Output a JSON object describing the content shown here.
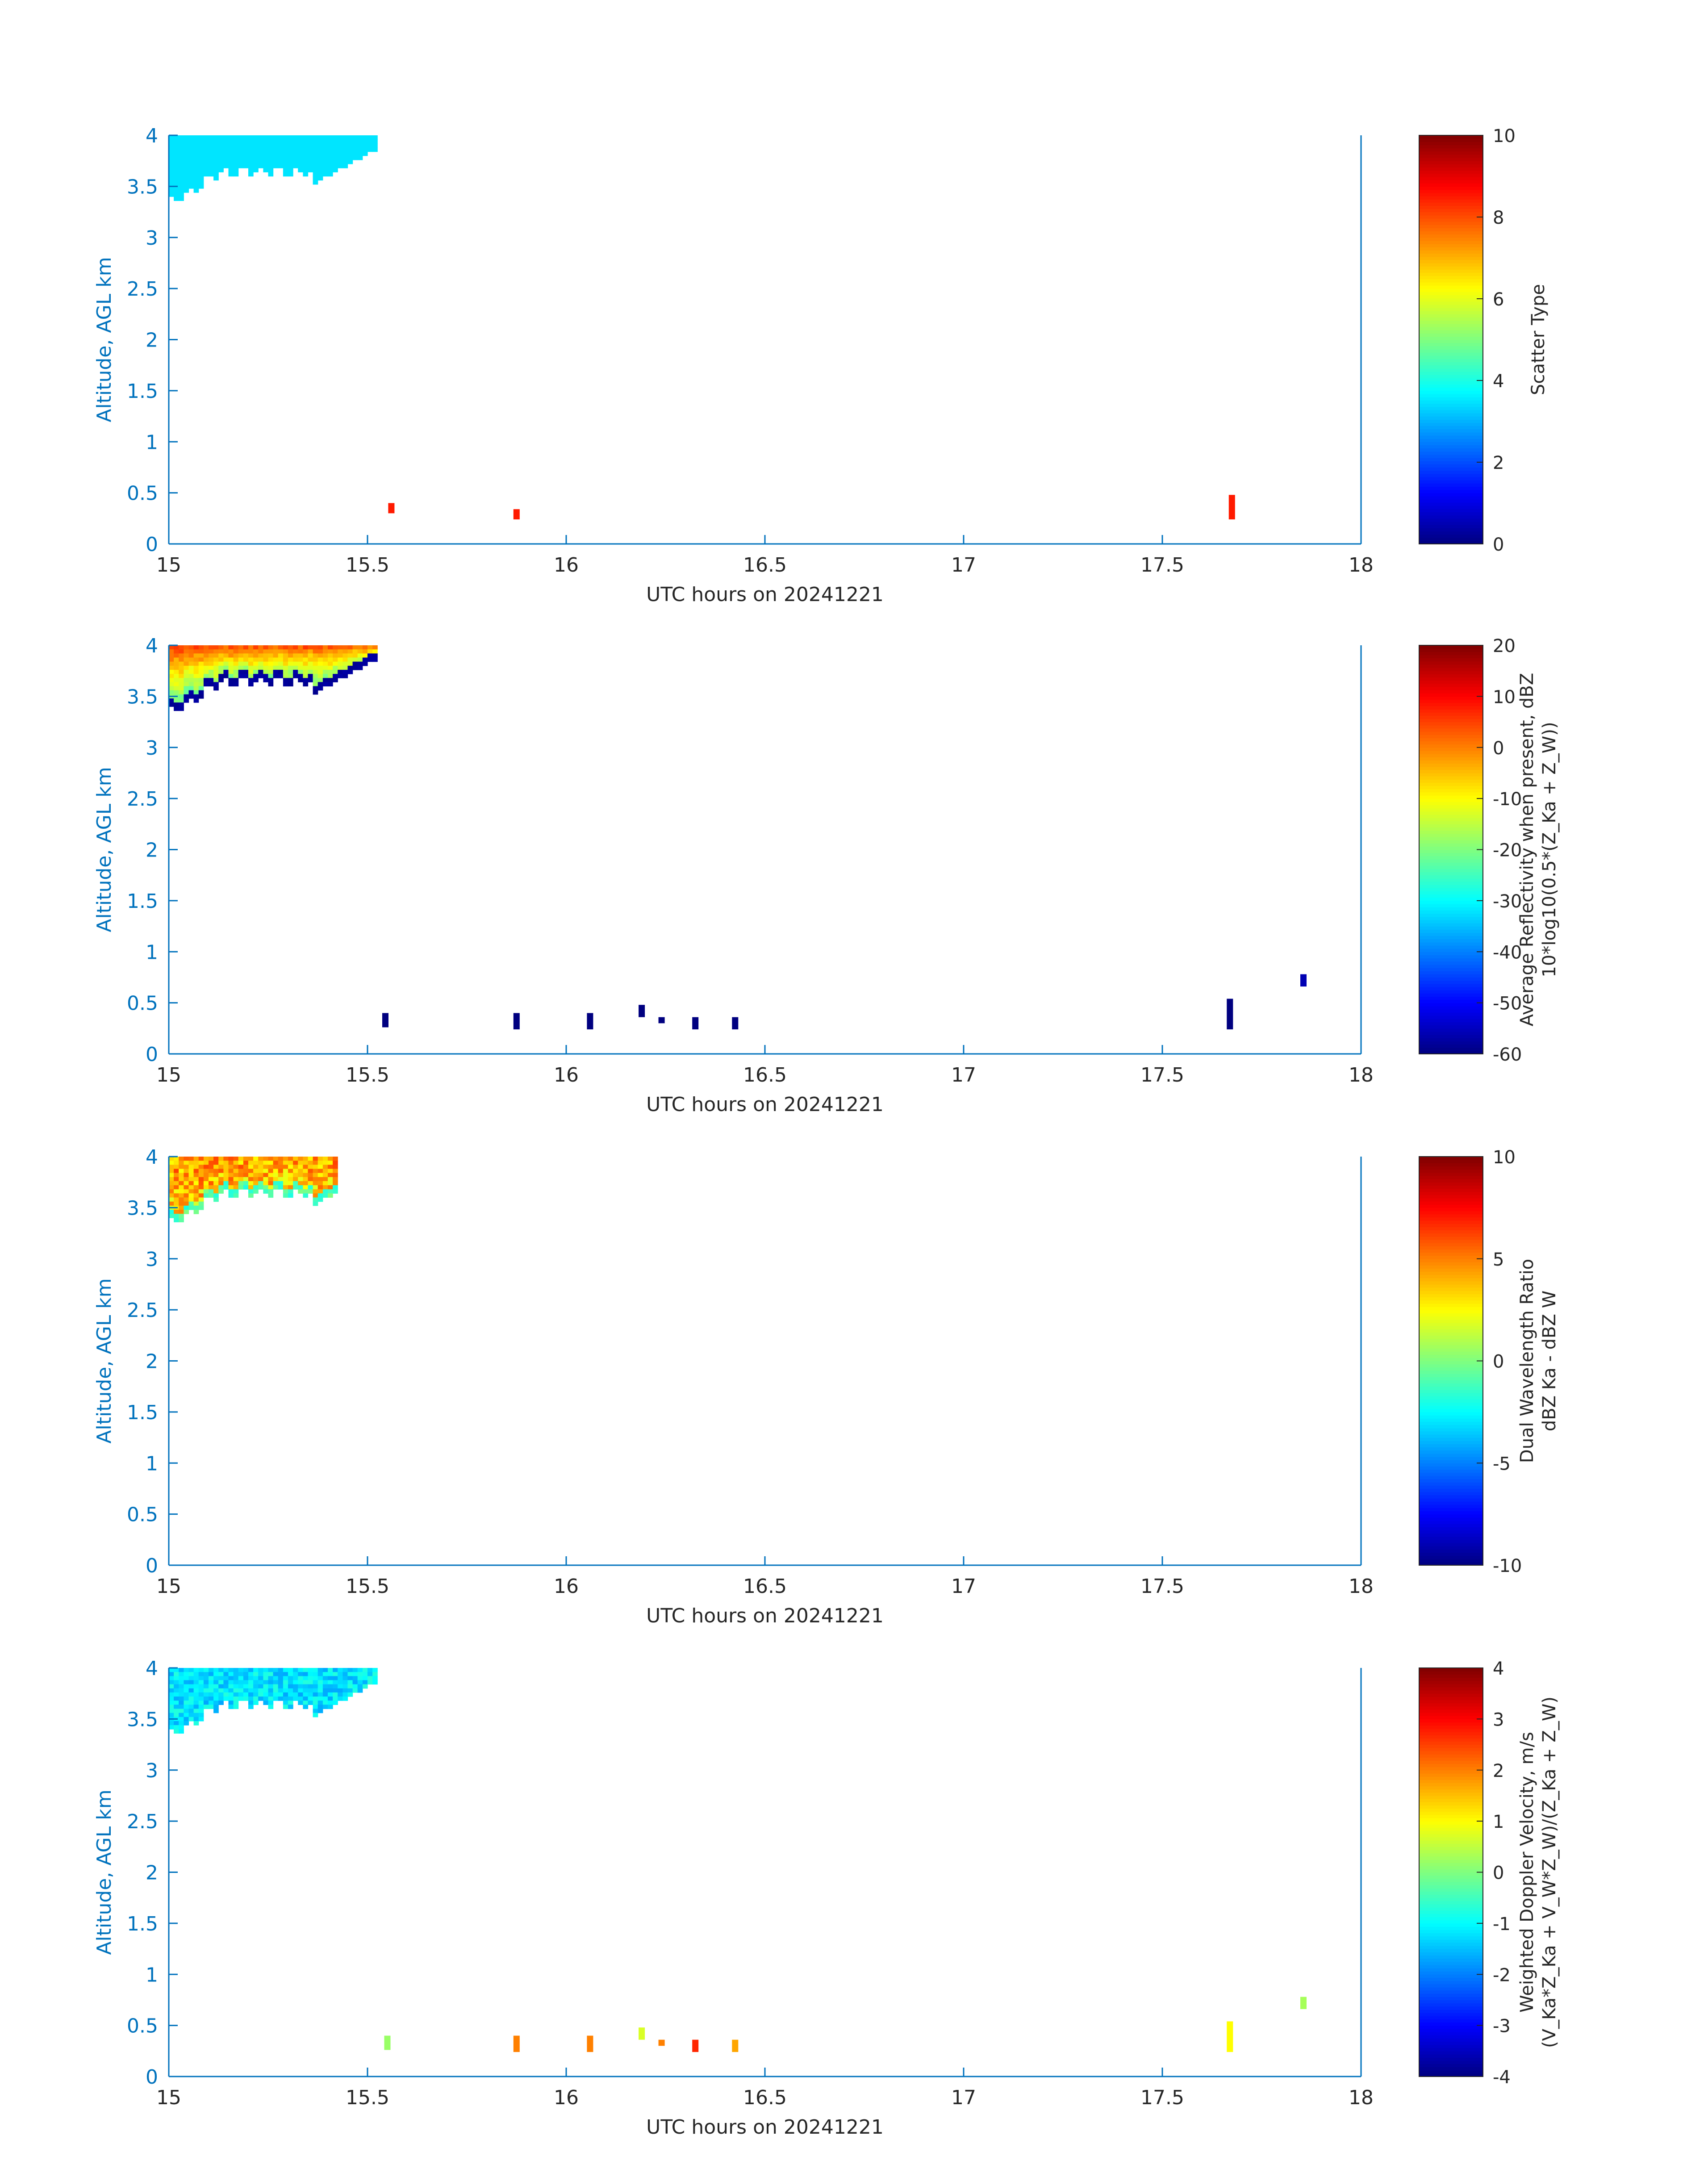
{
  "page": {
    "background": "#ffffff"
  },
  "style": {
    "axis_color": "#0072bd",
    "label_color": "#262626"
  },
  "chart_data": [
    {
      "type": "heatmap",
      "title": "",
      "xlabel": "UTC hours on 20241221",
      "ylabel": "Altitude, AGL km",
      "xlim": [
        15,
        18
      ],
      "ylim": [
        0,
        4
      ],
      "xticks": [
        "15",
        "15.5",
        "16",
        "16.5",
        "17",
        "17.5",
        "18"
      ],
      "yticks": [
        "0",
        "0.5",
        "1",
        "1.5",
        "2",
        "2.5",
        "3",
        "3.5",
        "4"
      ],
      "colormap": "jet",
      "colorbar": {
        "label_lines": [
          "Scatter Type"
        ],
        "ticks": [
          "0",
          "2",
          "4",
          "6",
          "8",
          "10"
        ],
        "clim": [
          0,
          10
        ]
      },
      "top_layer": {
        "t0": 15.0,
        "t1": 15.52,
        "value": 3.5,
        "variation": 0,
        "noise": 0
      },
      "features": [
        {
          "t": 15.56,
          "z0": 0.3,
          "z1": 0.4,
          "value": 8.5
        },
        {
          "t": 15.875,
          "z0": 0.24,
          "z1": 0.34,
          "value": 8.5
        },
        {
          "t": 17.675,
          "z0": 0.24,
          "z1": 0.48,
          "value": 8.5
        }
      ]
    },
    {
      "type": "heatmap",
      "title": "",
      "xlabel": "UTC hours on 20241221",
      "ylabel": "Altitude, AGL km",
      "xlim": [
        15,
        18
      ],
      "ylim": [
        0,
        4
      ],
      "xticks": [
        "15",
        "15.5",
        "16",
        "16.5",
        "17",
        "17.5",
        "18"
      ],
      "yticks": [
        "0",
        "0.5",
        "1",
        "1.5",
        "2",
        "2.5",
        "3",
        "3.5",
        "4"
      ],
      "colormap": "jet",
      "colorbar": {
        "label_lines": [
          "Average Reflectivity when present, dBZ",
          "10*log10(0.5*(Z_Ka + Z_W))"
        ],
        "ticks": [
          "-60",
          "-50",
          "-40",
          "-30",
          "-20",
          "-10",
          "0",
          "10",
          "20"
        ],
        "clim": [
          -60,
          20
        ]
      },
      "top_layer": {
        "t0": 15.0,
        "t1": 15.52,
        "value": -10,
        "variation": 40,
        "noise": 3,
        "base_value": -58,
        "base_rows": 2
      },
      "features": [
        {
          "t": 15.545,
          "z0": 0.26,
          "z1": 0.4,
          "value": -60
        },
        {
          "t": 15.875,
          "z0": 0.24,
          "z1": 0.4,
          "value": -60
        },
        {
          "t": 16.06,
          "z0": 0.24,
          "z1": 0.4,
          "value": -60
        },
        {
          "t": 16.19,
          "z0": 0.36,
          "z1": 0.48,
          "value": -60
        },
        {
          "t": 16.24,
          "z0": 0.3,
          "z1": 0.36,
          "value": -60
        },
        {
          "t": 16.325,
          "z0": 0.24,
          "z1": 0.36,
          "value": -60
        },
        {
          "t": 16.425,
          "z0": 0.24,
          "z1": 0.36,
          "value": -60
        },
        {
          "t": 17.67,
          "z0": 0.24,
          "z1": 0.54,
          "value": -60
        },
        {
          "t": 17.855,
          "z0": 0.66,
          "z1": 0.78,
          "value": -56
        }
      ]
    },
    {
      "type": "heatmap",
      "title": "",
      "xlabel": "UTC hours on 20241221",
      "ylabel": "Altitude, AGL km",
      "xlim": [
        15,
        18
      ],
      "ylim": [
        0,
        4
      ],
      "xticks": [
        "15",
        "15.5",
        "16",
        "16.5",
        "17",
        "17.5",
        "18"
      ],
      "yticks": [
        "0",
        "0.5",
        "1",
        "1.5",
        "2",
        "2.5",
        "3",
        "3.5",
        "4"
      ],
      "colormap": "jet",
      "colorbar": {
        "label_lines": [
          "Dual Wavelength Ratio",
          "dBZ Ka - dBZ W"
        ],
        "ticks": [
          "-10",
          "-5",
          "0",
          "5",
          "10"
        ],
        "clim": [
          -10,
          10
        ]
      },
      "top_layer": {
        "t0": 15.0,
        "t1": 15.42,
        "value": 4,
        "variation": 1.5,
        "noise": 2,
        "base_value": -1,
        "base_rows": 2
      },
      "features": []
    },
    {
      "type": "heatmap",
      "title": "",
      "xlabel": "UTC hours on 20241221",
      "ylabel": "Altitude, AGL km",
      "xlim": [
        15,
        18
      ],
      "ylim": [
        0,
        4
      ],
      "xticks": [
        "15",
        "15.5",
        "16",
        "16.5",
        "17",
        "17.5",
        "18"
      ],
      "yticks": [
        "0",
        "0.5",
        "1",
        "1.5",
        "2",
        "2.5",
        "3",
        "3.5",
        "4"
      ],
      "colormap": "jet",
      "colorbar": {
        "label_lines": [
          "Weighted Doppler Velocity, m/s",
          "(V_Ka*Z_Ka + V_W*Z_W)/(Z_Ka + Z_W)"
        ],
        "ticks": [
          "-4",
          "-3",
          "-2",
          "-1",
          "0",
          "1",
          "2",
          "3",
          "4"
        ],
        "clim": [
          -4,
          4
        ]
      },
      "top_layer": {
        "t0": 15.0,
        "t1": 15.52,
        "value": -1.2,
        "variation": 0,
        "noise": 0.5
      },
      "features": [
        {
          "t": 15.55,
          "z0": 0.26,
          "z1": 0.4,
          "value": 0.2
        },
        {
          "t": 15.875,
          "z0": 0.24,
          "z1": 0.4,
          "value": 2.0
        },
        {
          "t": 16.06,
          "z0": 0.24,
          "z1": 0.4,
          "value": 2.0
        },
        {
          "t": 16.19,
          "z0": 0.36,
          "z1": 0.48,
          "value": 0.7
        },
        {
          "t": 16.24,
          "z0": 0.3,
          "z1": 0.36,
          "value": 2.0
        },
        {
          "t": 16.325,
          "z0": 0.24,
          "z1": 0.36,
          "value": 2.7
        },
        {
          "t": 16.425,
          "z0": 0.24,
          "z1": 0.36,
          "value": 1.7
        },
        {
          "t": 17.67,
          "z0": 0.24,
          "z1": 0.54,
          "value": 1.0
        },
        {
          "t": 17.855,
          "z0": 0.66,
          "z1": 0.78,
          "value": 0.3
        }
      ]
    }
  ]
}
